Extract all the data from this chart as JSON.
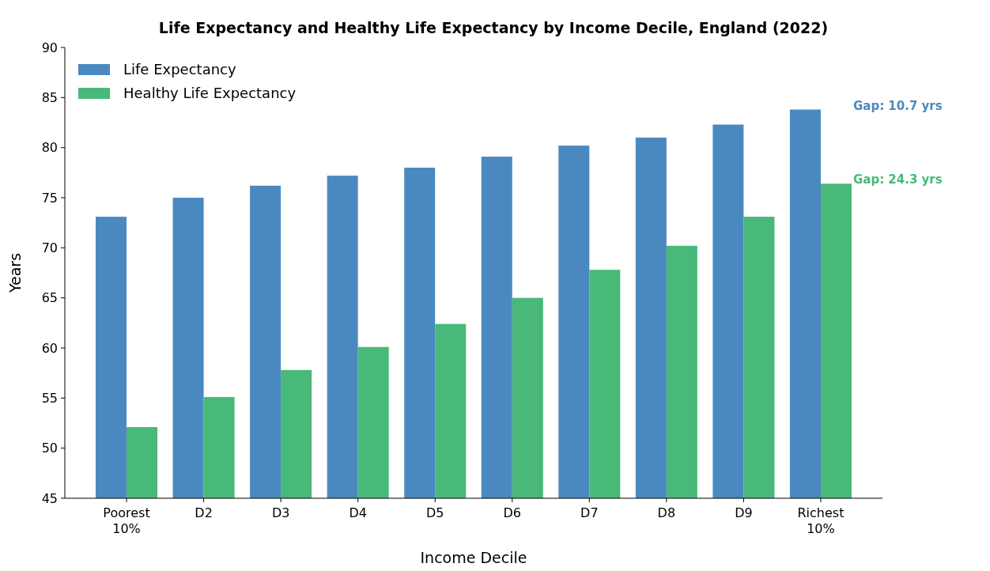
{
  "chart_data": {
    "type": "bar",
    "title": "Life Expectancy and Healthy Life Expectancy by Income Decile, England (2022)",
    "xlabel": "Income Decile",
    "ylabel": "Years",
    "categories": [
      "Poorest\n10%",
      "D2",
      "D3",
      "D4",
      "D5",
      "D6",
      "D7",
      "D8",
      "D9",
      "Richest\n10%"
    ],
    "series": [
      {
        "name": "Life Expectancy",
        "color": "#4a89c0",
        "values": [
          73.1,
          75.0,
          76.2,
          77.2,
          78.0,
          79.1,
          80.2,
          81.0,
          82.3,
          83.8
        ]
      },
      {
        "name": "Healthy Life Expectancy",
        "color": "#48b978",
        "values": [
          52.1,
          55.1,
          57.8,
          60.1,
          62.4,
          65.0,
          67.8,
          70.2,
          73.1,
          76.4
        ]
      }
    ],
    "ylim": [
      45,
      90
    ],
    "yticks": [
      45,
      50,
      55,
      60,
      65,
      70,
      75,
      80,
      85,
      90
    ],
    "grid": false,
    "legend": "top left",
    "annotations": [
      {
        "text": "Gap: 10.7 yrs",
        "x": "Richest\n10%",
        "y": 83.8
      },
      {
        "text": "Gap: 24.3 yrs",
        "x": "Richest\n10%",
        "y": 76.4
      }
    ]
  }
}
